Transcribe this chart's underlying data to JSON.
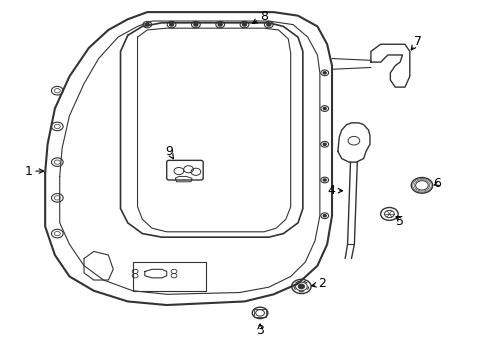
{
  "background_color": "#ffffff",
  "line_color": "#333333",
  "label_fontsize": 9,
  "figsize": [
    4.89,
    3.6
  ],
  "dpi": 100
}
